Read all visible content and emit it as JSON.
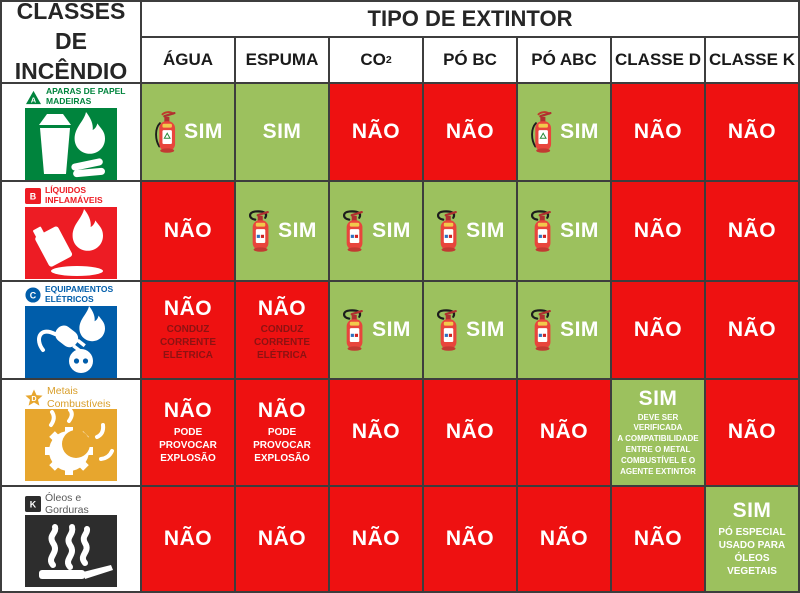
{
  "table": {
    "classes_header": "CLASSES DE INCÊNDIO",
    "extintor_header": "TIPO DE EXTINTOR",
    "columns": [
      {
        "key": "agua",
        "label": "ÁGUA",
        "sub": ""
      },
      {
        "key": "espuma",
        "label": "ESPUMA",
        "sub": ""
      },
      {
        "key": "co2",
        "label": "CO",
        "sub": "2"
      },
      {
        "key": "po-bc",
        "label": "PÓ BC",
        "sub": ""
      },
      {
        "key": "po-abc",
        "label": "PÓ ABC",
        "sub": ""
      },
      {
        "key": "classe-d",
        "label": "CLASSE D",
        "sub": ""
      },
      {
        "key": "classe-k",
        "label": "CLASSE K",
        "sub": ""
      }
    ],
    "colors": {
      "yes_bg": "#9cc15e",
      "no_bg": "#ee1111",
      "answer": "#ffffff",
      "grid_line": "#3d3d3d"
    },
    "rows": [
      {
        "class_id": "a",
        "badge_letter": "A",
        "badge_shape": "triangle",
        "badge_color": "#00843d",
        "name_lines": [
          "APARAS DE PAPEL",
          "MADEIRAS"
        ],
        "name_color": "#00843d",
        "name_style": "caps",
        "pictogram": "bin-flame",
        "pictogram_color": "#00843d",
        "cells": [
          {
            "answer": "SIM",
            "ok": true,
            "ext": "side"
          },
          {
            "answer": "SIM",
            "ok": true
          },
          {
            "answer": "NÃO",
            "ok": false
          },
          {
            "answer": "NÃO",
            "ok": false
          },
          {
            "answer": "SIM",
            "ok": true,
            "ext": "side"
          },
          {
            "answer": "NÃO",
            "ok": false
          },
          {
            "answer": "NÃO",
            "ok": false
          }
        ]
      },
      {
        "class_id": "b",
        "badge_letter": "B",
        "badge_shape": "square",
        "badge_color": "#ed1c24",
        "name_lines": [
          "LÍQUIDOS",
          "INFLAMÁVEIS"
        ],
        "name_color": "#ed1c24",
        "name_style": "caps",
        "pictogram": "canister-flame",
        "pictogram_color": "#ed1c24",
        "cells": [
          {
            "answer": "NÃO",
            "ok": false
          },
          {
            "answer": "SIM",
            "ok": true,
            "ext": "loop"
          },
          {
            "answer": "SIM",
            "ok": true,
            "ext": "loop"
          },
          {
            "answer": "SIM",
            "ok": true,
            "ext": "loop"
          },
          {
            "answer": "SIM",
            "ok": true,
            "ext": "loop"
          },
          {
            "answer": "NÃO",
            "ok": false
          },
          {
            "answer": "NÃO",
            "ok": false
          }
        ]
      },
      {
        "class_id": "c",
        "badge_letter": "C",
        "badge_shape": "circle",
        "badge_color": "#005daa",
        "name_lines": [
          "EQUIPAMENTOS",
          "ELÉTRICOS"
        ],
        "name_color": "#005daa",
        "name_style": "caps",
        "pictogram": "plug-flame",
        "pictogram_color": "#005daa",
        "cells": [
          {
            "answer": "NÃO",
            "ok": false,
            "note_lines": [
              "CONDUZ",
              "CORRENTE",
              "ELÉTRICA"
            ],
            "note_color": "#8d1212"
          },
          {
            "answer": "NÃO",
            "ok": false,
            "note_lines": [
              "CONDUZ",
              "CORRENTE",
              "ELÉTRICA"
            ],
            "note_color": "#8d1212"
          },
          {
            "answer": "SIM",
            "ok": true,
            "ext": "loop"
          },
          {
            "answer": "SIM",
            "ok": true,
            "ext": "loop"
          },
          {
            "answer": "SIM",
            "ok": true,
            "ext": "loop"
          },
          {
            "answer": "NÃO",
            "ok": false
          },
          {
            "answer": "NÃO",
            "ok": false
          }
        ]
      },
      {
        "class_id": "d",
        "badge_letter": "D",
        "badge_shape": "star",
        "badge_color": "#e7a62e",
        "name_lines": [
          "Metais",
          "Combustíveis"
        ],
        "name_color": "#d99f2b",
        "name_style": "mixed",
        "pictogram": "gear-flame",
        "pictogram_color": "#e7a62e",
        "cells": [
          {
            "answer": "NÃO",
            "ok": false,
            "note_lines": [
              "PODE",
              "PROVOCAR",
              "EXPLOSÃO"
            ],
            "note_color": "#ffffff"
          },
          {
            "answer": "NÃO",
            "ok": false,
            "note_lines": [
              "PODE",
              "PROVOCAR",
              "EXPLOSÃO"
            ],
            "note_color": "#ffffff"
          },
          {
            "answer": "NÃO",
            "ok": false
          },
          {
            "answer": "NÃO",
            "ok": false
          },
          {
            "answer": "NÃO",
            "ok": false
          },
          {
            "answer": "SIM",
            "ok": true,
            "note_lines": [
              "DEVE SER VERIFICADA",
              "A COMPATIBILIDADE",
              "ENTRE O METAL",
              "COMBUSTÍVEL E O",
              "AGENTE EXTINTOR"
            ],
            "note_color": "#ffffff"
          },
          {
            "answer": "NÃO",
            "ok": false
          }
        ]
      },
      {
        "class_id": "k",
        "badge_letter": "K",
        "badge_shape": "square",
        "badge_color": "#2d2d2d",
        "name_lines": [
          "Óleos e",
          "Gorduras"
        ],
        "name_color": "#5a5a5a",
        "name_style": "mixed",
        "pictogram": "pan-smoke",
        "pictogram_color": "#2d2d2d",
        "cells": [
          {
            "answer": "NÃO",
            "ok": false
          },
          {
            "answer": "NÃO",
            "ok": false
          },
          {
            "answer": "NÃO",
            "ok": false
          },
          {
            "answer": "NÃO",
            "ok": false
          },
          {
            "answer": "NÃO",
            "ok": false
          },
          {
            "answer": "NÃO",
            "ok": false
          },
          {
            "answer": "SIM",
            "ok": true,
            "note_lines": [
              "PÓ ESPECIAL",
              "USADO PARA",
              "ÓLEOS",
              "VEGETAIS"
            ],
            "note_color": "#ffffff"
          }
        ]
      }
    ]
  }
}
